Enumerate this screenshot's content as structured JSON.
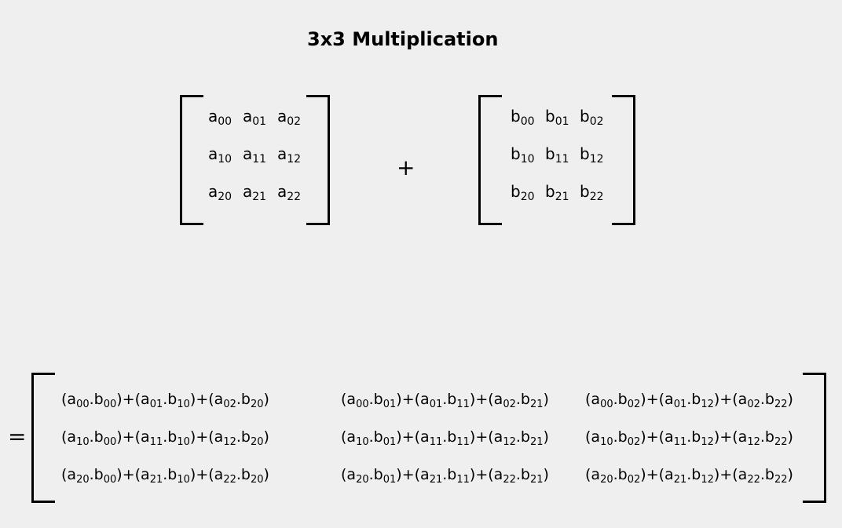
{
  "title": "3x3 Multiplication",
  "operator": "+",
  "equals": "=",
  "matrix_a": {
    "letter": "a",
    "rows": [
      [
        "00",
        "01",
        "02"
      ],
      [
        "10",
        "11",
        "12"
      ],
      [
        "20",
        "21",
        "22"
      ]
    ]
  },
  "matrix_b": {
    "letter": "b",
    "rows": [
      [
        "00",
        "01",
        "02"
      ],
      [
        "10",
        "11",
        "12"
      ],
      [
        "20",
        "21",
        "22"
      ]
    ]
  },
  "result": {
    "rows": [
      [
        [
          [
            "a",
            "00"
          ],
          [
            "b",
            "00"
          ],
          [
            "a",
            "01"
          ],
          [
            "b",
            "10"
          ],
          [
            "a",
            "02"
          ],
          [
            "b",
            "20"
          ]
        ],
        [
          [
            "a",
            "00"
          ],
          [
            "b",
            "01"
          ],
          [
            "a",
            "01"
          ],
          [
            "b",
            "11"
          ],
          [
            "a",
            "02"
          ],
          [
            "b",
            "21"
          ]
        ],
        [
          [
            "a",
            "00"
          ],
          [
            "b",
            "02"
          ],
          [
            "a",
            "01"
          ],
          [
            "b",
            "12"
          ],
          [
            "a",
            "02"
          ],
          [
            "b",
            "22"
          ]
        ]
      ],
      [
        [
          [
            "a",
            "10"
          ],
          [
            "b",
            "00"
          ],
          [
            "a",
            "11"
          ],
          [
            "b",
            "10"
          ],
          [
            "a",
            "12"
          ],
          [
            "b",
            "20"
          ]
        ],
        [
          [
            "a",
            "10"
          ],
          [
            "b",
            "01"
          ],
          [
            "a",
            "11"
          ],
          [
            "b",
            "11"
          ],
          [
            "a",
            "12"
          ],
          [
            "b",
            "21"
          ]
        ],
        [
          [
            "a",
            "10"
          ],
          [
            "b",
            "02"
          ],
          [
            "a",
            "11"
          ],
          [
            "b",
            "12"
          ],
          [
            "a",
            "12"
          ],
          [
            "b",
            "22"
          ]
        ]
      ],
      [
        [
          [
            "a",
            "20"
          ],
          [
            "b",
            "00"
          ],
          [
            "a",
            "21"
          ],
          [
            "b",
            "10"
          ],
          [
            "a",
            "22"
          ],
          [
            "b",
            "20"
          ]
        ],
        [
          [
            "a",
            "20"
          ],
          [
            "b",
            "01"
          ],
          [
            "a",
            "21"
          ],
          [
            "b",
            "11"
          ],
          [
            "a",
            "22"
          ],
          [
            "b",
            "21"
          ]
        ],
        [
          [
            "a",
            "20"
          ],
          [
            "b",
            "02"
          ],
          [
            "a",
            "21"
          ],
          [
            "b",
            "12"
          ],
          [
            "a",
            "22"
          ],
          [
            "b",
            "22"
          ]
        ]
      ]
    ]
  }
}
